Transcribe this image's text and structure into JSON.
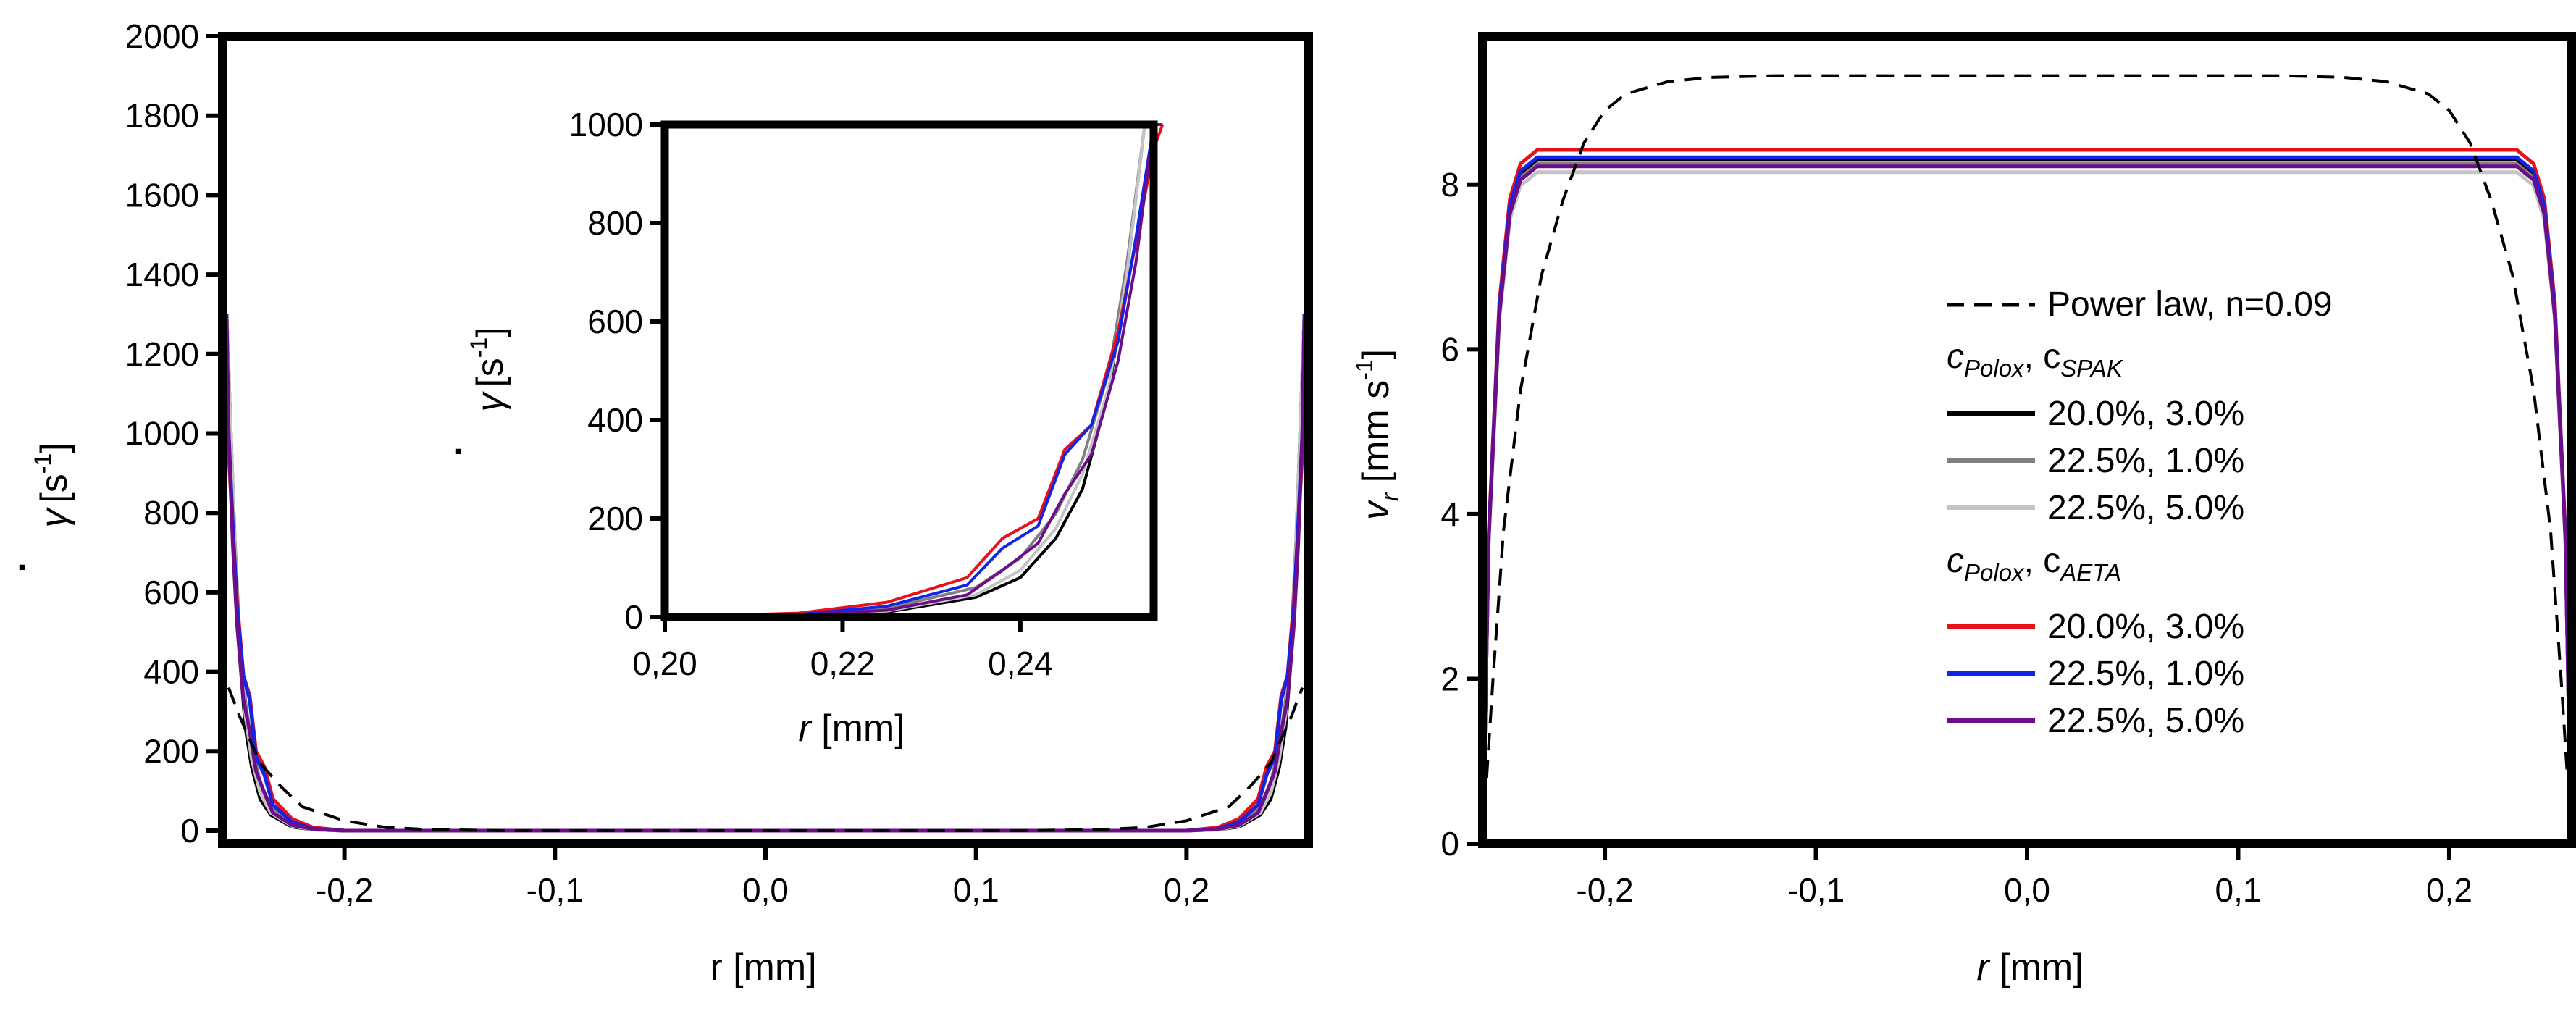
{
  "chart_data": [
    {
      "id": "shear-rate",
      "type": "line",
      "title": "",
      "ylabel_symbol": "γ",
      "ylabel_dot": "·",
      "ylabel_unit_open": "[s",
      "ylabel_unit_exp": "-1",
      "ylabel_unit_close": "]",
      "xlabel": "r [mm]",
      "xlim": [
        -0.258,
        0.258
      ],
      "ylim": [
        0,
        2000
      ],
      "xticks": [
        -0.2,
        -0.1,
        0.0,
        0.1,
        0.2
      ],
      "xtick_labels": [
        "-0,2",
        "-0,1",
        "0,0",
        "0,1",
        "0,2"
      ],
      "yticks": [
        0,
        200,
        400,
        600,
        800,
        1000,
        1200,
        1400,
        1600,
        1800,
        2000
      ],
      "ytick_labels": [
        "0",
        "200",
        "400",
        "600",
        "800",
        "1000",
        "1200",
        "1400",
        "1600",
        "1800",
        "2000"
      ],
      "series": [
        {
          "name": "Power law, n=0.09",
          "color": "#000000",
          "dash": true,
          "x": [
            0,
            0.12,
            0.16,
            0.18,
            0.2,
            0.22,
            0.23,
            0.24,
            0.25,
            0.255
          ],
          "y": [
            0,
            0,
            3,
            8,
            25,
            60,
            110,
            170,
            290,
            360
          ]
        },
        {
          "name": "SPAK 20.0%, 3.0%",
          "color": "#000000",
          "x": [
            0,
            0.2,
            0.215,
            0.225,
            0.235,
            0.24,
            0.244,
            0.247,
            0.25,
            0.252,
            0.254,
            0.256
          ],
          "y": [
            0,
            0,
            3,
            10,
            40,
            80,
            160,
            260,
            460,
            700,
            1000,
            1300
          ]
        },
        {
          "name": "SPAK 22.5%, 1.0%",
          "color": "#808080",
          "x": [
            0,
            0.2,
            0.215,
            0.225,
            0.235,
            0.24,
            0.244,
            0.247,
            0.25,
            0.252,
            0.254,
            0.256
          ],
          "y": [
            0,
            0,
            5,
            18,
            60,
            120,
            210,
            320,
            500,
            720,
            1000,
            1300
          ]
        },
        {
          "name": "SPAK 22.5%, 5.0%",
          "color": "#c4c4c4",
          "x": [
            0,
            0.2,
            0.215,
            0.225,
            0.235,
            0.24,
            0.244,
            0.247,
            0.25,
            0.252,
            0.254,
            0.256
          ],
          "y": [
            0,
            0,
            3,
            12,
            45,
            95,
            180,
            290,
            470,
            700,
            1000,
            1300
          ]
        },
        {
          "name": "AETA 20.0%, 3.0%",
          "color": "#e8111a",
          "x": [
            0,
            0.2,
            0.215,
            0.225,
            0.234,
            0.238,
            0.242,
            0.245,
            0.248,
            0.251,
            0.253,
            0.255,
            0.256
          ],
          "y": [
            0,
            0,
            8,
            30,
            80,
            160,
            200,
            340,
            390,
            580,
            760,
            950,
            1300
          ]
        },
        {
          "name": "AETA 22.5%, 1.0%",
          "color": "#1324e8",
          "x": [
            0,
            0.2,
            0.215,
            0.225,
            0.234,
            0.238,
            0.242,
            0.245,
            0.248,
            0.251,
            0.253,
            0.255,
            0.256
          ],
          "y": [
            0,
            0,
            5,
            22,
            65,
            140,
            185,
            330,
            390,
            560,
            770,
            1000,
            1300
          ]
        },
        {
          "name": "AETA 22.5%, 5.0%",
          "color": "#6e0d89",
          "x": [
            0,
            0.2,
            0.215,
            0.225,
            0.234,
            0.238,
            0.242,
            0.245,
            0.248,
            0.251,
            0.253,
            0.255,
            0.256
          ],
          "y": [
            0,
            0,
            4,
            14,
            45,
            95,
            150,
            250,
            330,
            520,
            720,
            1000,
            1300
          ]
        }
      ],
      "inset": {
        "xlim": [
          0.2,
          0.255
        ],
        "ylim": [
          0,
          1000
        ],
        "xticks": [
          0.2,
          0.22,
          0.24
        ],
        "xtick_labels": [
          "0,20",
          "0,22",
          "0,24"
        ],
        "yticks": [
          0,
          200,
          400,
          600,
          800,
          1000
        ],
        "ytick_labels": [
          "0",
          "200",
          "400",
          "600",
          "800",
          "1000"
        ],
        "xlabel_var": "r",
        "xlabel_unit": " [mm]"
      }
    },
    {
      "id": "velocity",
      "type": "line",
      "title": "",
      "ylabel_symbol": "v",
      "ylabel_sub": "r",
      "ylabel_unit_open": " [mm s",
      "ylabel_unit_exp": "-1",
      "ylabel_unit_close": "]",
      "xlabel_var": "r",
      "xlabel_unit": " [mm]",
      "xlim": [
        -0.258,
        0.258
      ],
      "ylim": [
        0,
        9.8
      ],
      "xticks": [
        -0.2,
        -0.1,
        0.0,
        0.1,
        0.2
      ],
      "xtick_labels": [
        "-0,2",
        "-0,1",
        "0,0",
        "0,1",
        "0,2"
      ],
      "yticks": [
        0,
        2,
        4,
        6,
        8
      ],
      "ytick_labels": [
        "0",
        "2",
        "4",
        "6",
        "8"
      ],
      "series": [
        {
          "name": "Power law, n=0.09",
          "color": "#000000",
          "dash": true,
          "x": [
            -0.256,
            -0.253,
            -0.248,
            -0.24,
            -0.23,
            -0.22,
            -0.21,
            -0.2,
            -0.19,
            -0.17,
            -0.15,
            -0.12,
            0,
            0.12,
            0.15,
            0.17,
            0.19,
            0.2,
            0.21,
            0.22,
            0.23,
            0.24,
            0.248,
            0.253,
            0.256
          ],
          "y": [
            0.8,
            2.0,
            3.8,
            5.5,
            6.9,
            7.8,
            8.5,
            8.9,
            9.1,
            9.25,
            9.3,
            9.32,
            9.32,
            9.32,
            9.3,
            9.25,
            9.1,
            8.9,
            8.5,
            7.8,
            6.9,
            5.5,
            3.8,
            2.0,
            0.8
          ]
        },
        {
          "name": "SPAK 20.0%, 3.0%",
          "color": "#000000",
          "plateau": 8.3
        },
        {
          "name": "SPAK 22.5%, 1.0%",
          "color": "#808080",
          "plateau": 8.25
        },
        {
          "name": "SPAK 22.5%, 5.0%",
          "color": "#c4c4c4",
          "plateau": 8.15
        },
        {
          "name": "AETA 20.0%, 3.0%",
          "color": "#e8111a",
          "plateau": 8.42
        },
        {
          "name": "AETA 22.5%, 1.0%",
          "color": "#1324e8",
          "plateau": 8.33
        },
        {
          "name": "AETA 22.5%, 5.0%",
          "color": "#6e0d89",
          "plateau": 8.22
        }
      ],
      "legend": {
        "position": "center-right",
        "power_label": "Power law, n=0.09",
        "group1_c": "c",
        "group1_sub1": "Polox",
        "group1_sep": ", c",
        "group1_sub2": "SPAK",
        "group2_c": "c",
        "group2_sub1": "Polox",
        "group2_sep": ", c",
        "group2_sub2": "AETA",
        "entries": [
          {
            "label": "20.0%, 3.0%",
            "color": "#000000"
          },
          {
            "label": "22.5%, 1.0%",
            "color": "#808080"
          },
          {
            "label": "22.5%, 5.0%",
            "color": "#c4c4c4"
          },
          {
            "label": "20.0%, 3.0%",
            "color": "#e8111a"
          },
          {
            "label": "22.5%, 1.0%",
            "color": "#1324e8"
          },
          {
            "label": "22.5%, 5.0%",
            "color": "#6e0d89"
          }
        ]
      }
    }
  ]
}
